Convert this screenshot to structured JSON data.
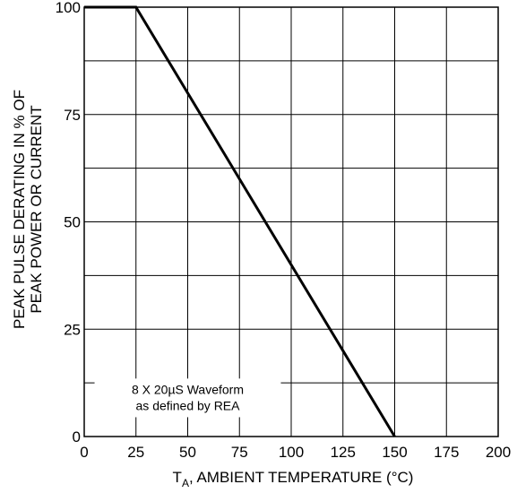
{
  "chart_data": {
    "type": "line",
    "xlabel_base": "T",
    "xlabel_sub": "A",
    "xlabel_rest": ", AMBIENT TEMPERATURE (°C)",
    "ylabel_line1": "PEAK PULSE DERATING IN % OF",
    "ylabel_line2": "PEAK POWER OR CURRENT",
    "xlim": [
      0,
      200
    ],
    "ylim": [
      0,
      100
    ],
    "x_ticks": [
      0,
      25,
      50,
      75,
      100,
      125,
      150,
      175,
      200
    ],
    "x_tick_labels": [
      "0",
      "25",
      "50",
      "75",
      "100",
      "125",
      "150",
      "175",
      "200"
    ],
    "y_ticks": [
      0,
      25,
      50,
      75,
      100
    ],
    "y_tick_labels": [
      "0",
      "25",
      "50",
      "75",
      "100"
    ],
    "x_grid": [
      0,
      25,
      50,
      75,
      100,
      125,
      150,
      175,
      200
    ],
    "y_grid": [
      0,
      12.5,
      25,
      37.5,
      50,
      62.5,
      75,
      87.5,
      100
    ],
    "grid": true,
    "series": [
      {
        "x": [
          0,
          25,
          150
        ],
        "y": [
          100,
          100,
          0
        ]
      }
    ],
    "annotation": {
      "line1": "8 X 20µS Waveform",
      "line2": "as defined by REA"
    }
  }
}
